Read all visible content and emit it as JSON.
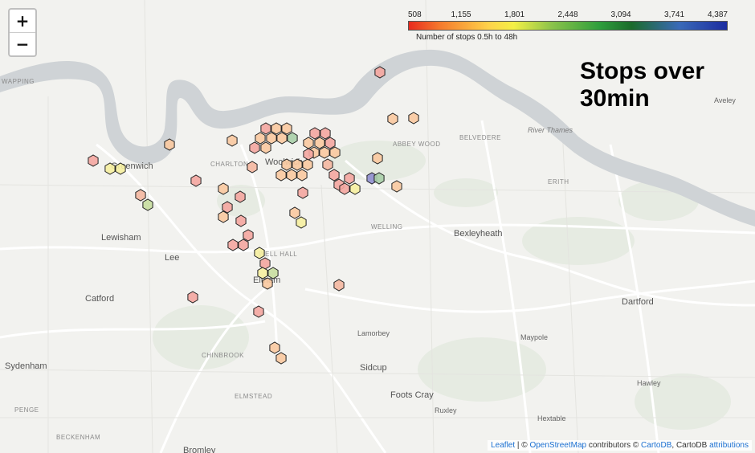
{
  "title": {
    "line1": "Stops over",
    "line2": "30min"
  },
  "legend": {
    "ticks": [
      "508",
      "1,155",
      "1,801",
      "2,448",
      "3,094",
      "3,741",
      "4,387"
    ],
    "caption": "Number of stops 0.5h to 48h",
    "min": 508,
    "max": 4387
  },
  "zoom": {
    "in": "+",
    "out": "−"
  },
  "attribution": {
    "leaflet": "Leaflet",
    "sep": " | © ",
    "osm": "OpenStreetMap",
    "contrib": " contributors © ",
    "carto": "CartoDB",
    "carto2": ", CartoDB ",
    "attributions": "attributions"
  },
  "place_labels": {
    "greenwich": "Greenwich",
    "woolwich": "Woolwich",
    "lewisham": "Lewisham",
    "lee": "Lee",
    "catford": "Catford",
    "sydenham": "Sydenham",
    "eltham": "Eltham",
    "bexleyheath": "Bexleyheath",
    "sidcup": "Sidcup",
    "foots_cray": "Foots Cray",
    "dartford": "Dartford",
    "river_thames": "River Thames",
    "abbey_wood": "ABBEY WOOD",
    "belvedere": "BELVEDERE",
    "erith": "ERITH",
    "welling": "WELLING",
    "charlton": "CHARLTON",
    "lamorbey": "Lamorbey",
    "maypole": "Maypole",
    "chinbrook": "CHINBROOK",
    "elmstead": "ELMSTEAD",
    "ruxley": "Ruxley",
    "hextable": "Hextable",
    "hawley": "Hawley",
    "aveley": "Aveley",
    "penge": "PENGE",
    "beckenham": "BECKENHAM",
    "bromley": "Bromley",
    "wapping": "WAPPING",
    "well_hall": "WELL HALL"
  },
  "colors": {
    "river": "#cfd3d6",
    "land": "#f2f2ef",
    "road": "#ffffff",
    "hex_stroke": "#222222"
  },
  "hexagons": [
    {
      "v": 700,
      "c": "#f4a6a0"
    },
    {
      "v": 900,
      "c": "#f9c9a0"
    },
    {
      "v": 950,
      "c": "#f9c9a0"
    },
    {
      "v": 1650,
      "c": "#f6f0a0"
    },
    {
      "v": 1700,
      "c": "#f6f0a0"
    },
    {
      "v": 850,
      "c": "#f4b7a0"
    },
    {
      "v": 1500,
      "c": "#c8dea0"
    },
    {
      "v": 900,
      "c": "#f9c9a0"
    },
    {
      "v": 800,
      "c": "#f4a6a0"
    },
    {
      "v": 1100,
      "c": "#fad4a0"
    },
    {
      "v": 900,
      "c": "#f9c9a0"
    },
    {
      "v": 1600,
      "c": "#f6f0a0"
    },
    {
      "v": 2600,
      "c": "#a9cfa8"
    },
    {
      "v": 3900,
      "c": "#8f8fcf"
    },
    {
      "v": 2600,
      "c": "#a9cfa8"
    }
  ]
}
